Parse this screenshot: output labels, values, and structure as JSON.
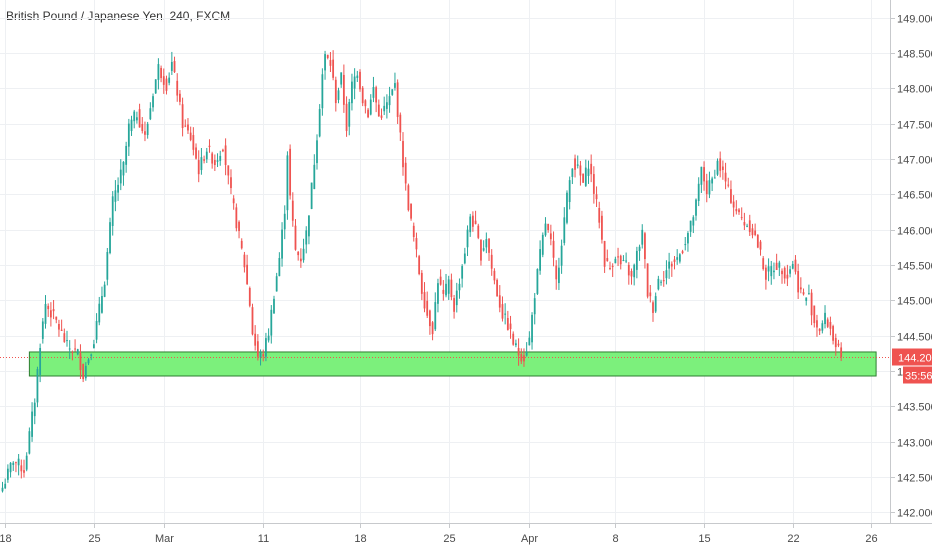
{
  "header": {
    "title": "British Pound / Japanese Yen, 240, FXCM"
  },
  "colors": {
    "up": "#26a69a",
    "down": "#ef5350",
    "zone_fill": "#7cf07c",
    "zone_stroke": "#2e7d32",
    "grid": "#eef0f3",
    "price_line": "#ef5350"
  },
  "chart_data": {
    "type": "candlestick",
    "title": "British Pound / Japanese Yen, 240, FXCM",
    "y_axis": {
      "ylim": [
        141.85,
        149.25
      ],
      "ticks": [
        142.0,
        142.5,
        143.0,
        143.5,
        144.0,
        144.5,
        145.0,
        145.5,
        146.0,
        146.5,
        147.0,
        147.5,
        148.0,
        148.5,
        149.0
      ],
      "tick_labels": [
        "142.000",
        "142.500",
        "143.000",
        "143.500",
        "144.000",
        "144.500",
        "145.000",
        "145.500",
        "146.000",
        "146.500",
        "147.000",
        "147.500",
        "148.000",
        "148.500",
        "149.000"
      ],
      "side": "right"
    },
    "x_axis": {
      "tick_labels": [
        "18",
        "25",
        "Mar",
        "11",
        "18",
        "25",
        "Apr",
        "8",
        "15",
        "22",
        "26"
      ],
      "tick_index": [
        1,
        34,
        60,
        97,
        133,
        166,
        196,
        228,
        261,
        294,
        323
      ]
    },
    "last_price": {
      "value": 144.201,
      "label": "144.201",
      "countdown": "35:56"
    },
    "support_zone": {
      "y_top": 144.27,
      "y_bottom": 143.93,
      "x_start_index": 10,
      "x_end_index": 325
    },
    "series_path": [
      [
        0,
        142.35
      ],
      [
        4,
        142.75
      ],
      [
        8,
        142.6
      ],
      [
        12,
        143.6
      ],
      [
        14,
        144.4
      ],
      [
        16,
        144.95
      ],
      [
        20,
        144.7
      ],
      [
        24,
        144.35
      ],
      [
        28,
        144.25
      ],
      [
        30,
        143.95
      ],
      [
        34,
        144.45
      ],
      [
        38,
        145.3
      ],
      [
        41,
        146.4
      ],
      [
        45,
        146.9
      ],
      [
        47,
        147.45
      ],
      [
        50,
        147.65
      ],
      [
        53,
        147.3
      ],
      [
        56,
        147.95
      ],
      [
        58,
        148.3
      ],
      [
        61,
        148.05
      ],
      [
        63,
        148.35
      ],
      [
        65,
        147.95
      ],
      [
        67,
        147.5
      ],
      [
        70,
        147.3
      ],
      [
        73,
        146.85
      ],
      [
        76,
        147.15
      ],
      [
        79,
        146.95
      ],
      [
        82,
        147.2
      ],
      [
        84,
        146.7
      ],
      [
        86,
        146.3
      ],
      [
        88,
        145.9
      ],
      [
        90,
        145.5
      ],
      [
        92,
        144.95
      ],
      [
        93,
        144.55
      ],
      [
        95,
        144.2
      ],
      [
        97,
        144.25
      ],
      [
        99,
        144.55
      ],
      [
        101,
        145.1
      ],
      [
        103,
        145.6
      ],
      [
        105,
        146.3
      ],
      [
        106,
        147.1
      ],
      [
        107,
        146.45
      ],
      [
        109,
        145.7
      ],
      [
        111,
        145.6
      ],
      [
        113,
        145.95
      ],
      [
        115,
        146.6
      ],
      [
        117,
        147.35
      ],
      [
        119,
        148.2
      ],
      [
        120,
        148.45
      ],
      [
        122,
        148.35
      ],
      [
        124,
        147.85
      ],
      [
        126,
        148.15
      ],
      [
        128,
        147.45
      ],
      [
        130,
        148.05
      ],
      [
        132,
        148.25
      ],
      [
        134,
        147.85
      ],
      [
        136,
        147.65
      ],
      [
        138,
        148.0
      ],
      [
        140,
        147.6
      ],
      [
        142,
        147.7
      ],
      [
        144,
        147.85
      ],
      [
        146,
        148.05
      ],
      [
        148,
        147.3
      ],
      [
        150,
        146.6
      ],
      [
        152,
        146.1
      ],
      [
        154,
        145.65
      ],
      [
        156,
        145.15
      ],
      [
        158,
        144.8
      ],
      [
        160,
        144.6
      ],
      [
        162,
        145.3
      ],
      [
        164,
        145.05
      ],
      [
        166,
        145.25
      ],
      [
        168,
        144.9
      ],
      [
        170,
        145.3
      ],
      [
        172,
        145.7
      ],
      [
        174,
        146.2
      ],
      [
        176,
        146.0
      ],
      [
        178,
        145.65
      ],
      [
        180,
        145.9
      ],
      [
        182,
        145.45
      ],
      [
        184,
        145.1
      ],
      [
        186,
        144.8
      ],
      [
        188,
        144.65
      ],
      [
        190,
        144.4
      ],
      [
        192,
        144.25
      ],
      [
        194,
        144.2
      ],
      [
        196,
        144.45
      ],
      [
        198,
        145.1
      ],
      [
        200,
        145.65
      ],
      [
        202,
        146.1
      ],
      [
        204,
        145.8
      ],
      [
        206,
        145.25
      ],
      [
        208,
        145.85
      ],
      [
        210,
        146.45
      ],
      [
        212,
        146.95
      ],
      [
        214,
        146.85
      ],
      [
        216,
        146.65
      ],
      [
        218,
        146.95
      ],
      [
        220,
        146.55
      ],
      [
        222,
        146.15
      ],
      [
        224,
        145.55
      ],
      [
        226,
        145.45
      ],
      [
        228,
        145.65
      ],
      [
        230,
        145.5
      ],
      [
        232,
        145.5
      ],
      [
        234,
        145.3
      ],
      [
        236,
        145.65
      ],
      [
        238,
        145.95
      ],
      [
        240,
        145.1
      ],
      [
        242,
        144.9
      ],
      [
        244,
        145.3
      ],
      [
        246,
        145.35
      ],
      [
        248,
        145.5
      ],
      [
        250,
        145.55
      ],
      [
        252,
        145.65
      ],
      [
        254,
        145.85
      ],
      [
        256,
        146.05
      ],
      [
        258,
        146.35
      ],
      [
        260,
        146.85
      ],
      [
        262,
        146.55
      ],
      [
        264,
        146.7
      ],
      [
        266,
        146.95
      ],
      [
        268,
        146.8
      ],
      [
        270,
        146.55
      ],
      [
        272,
        146.35
      ],
      [
        274,
        146.2
      ],
      [
        276,
        146.1
      ],
      [
        278,
        146.05
      ],
      [
        280,
        145.9
      ],
      [
        282,
        145.65
      ],
      [
        284,
        145.35
      ],
      [
        286,
        145.45
      ],
      [
        288,
        145.5
      ],
      [
        290,
        145.45
      ],
      [
        292,
        145.35
      ],
      [
        294,
        145.55
      ],
      [
        296,
        145.2
      ],
      [
        298,
        145.05
      ],
      [
        300,
        145.05
      ],
      [
        302,
        144.7
      ],
      [
        304,
        144.6
      ],
      [
        306,
        144.75
      ],
      [
        308,
        144.6
      ],
      [
        310,
        144.35
      ],
      [
        312,
        144.2
      ]
    ]
  }
}
